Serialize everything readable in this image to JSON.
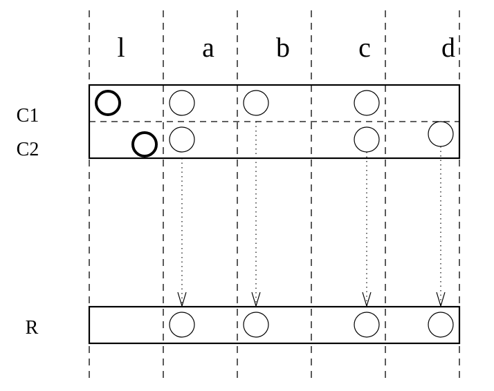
{
  "columns": [
    "l",
    "a",
    "b",
    "c",
    "d"
  ],
  "rows": {
    "c1": "C1",
    "c2": "C2",
    "r": "R"
  },
  "style": {
    "ink": "#000000",
    "background": "#ffffff"
  }
}
